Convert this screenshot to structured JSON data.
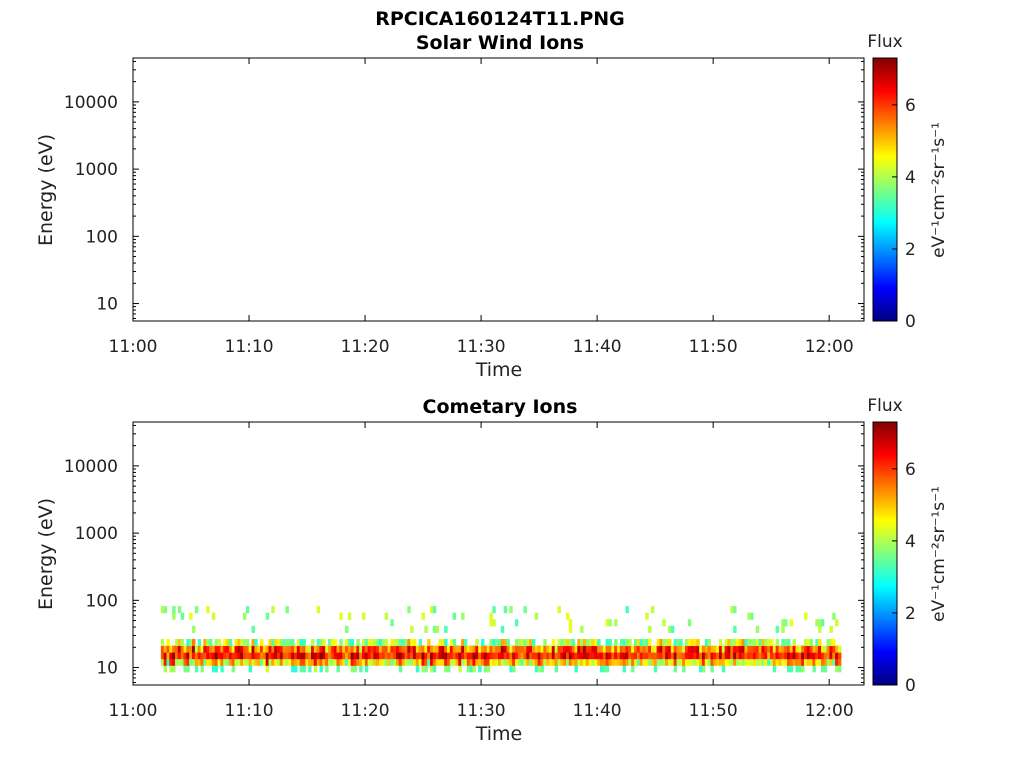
{
  "figure": {
    "filename": "RPCICA160124T11.PNG"
  },
  "colorbar": {
    "title": "Flux",
    "unit_label": "eV⁻¹cm⁻²sr⁻¹s⁻¹",
    "ticks": [
      "0",
      "2",
      "4",
      "6"
    ],
    "range": [
      0,
      7.3
    ],
    "colormap": "jet",
    "colors": [
      "#00007f",
      "#0000ff",
      "#007fff",
      "#00ffff",
      "#7fff7f",
      "#ffff00",
      "#ff7f00",
      "#ff0000",
      "#7f0000"
    ]
  },
  "chart_data": [
    {
      "type": "heatmap",
      "title": "Solar Wind Ions",
      "xlabel": "Time",
      "ylabel": "Energy (eV)",
      "xticks": [
        "11:00",
        "11:10",
        "11:20",
        "11:30",
        "11:40",
        "11:50",
        "12:00"
      ],
      "xlim_minutes": [
        0,
        63
      ],
      "yscale": "log",
      "yticks": [
        "10",
        "100",
        "1000",
        "10000"
      ],
      "ylim": [
        5.5,
        45000
      ],
      "data": "no counts shown",
      "band": null
    },
    {
      "type": "heatmap",
      "title": "Cometary Ions",
      "xlabel": "Time",
      "ylabel": "Energy (eV)",
      "xticks": [
        "11:00",
        "11:10",
        "11:20",
        "11:30",
        "11:40",
        "11:50",
        "12:00"
      ],
      "xlim_minutes": [
        0,
        63
      ],
      "yscale": "log",
      "yticks": [
        "10",
        "100",
        "1000",
        "10000"
      ],
      "ylim": [
        5.5,
        45000
      ],
      "band": {
        "t_start_min": 2.4,
        "t_end_min": 61,
        "energy_low_eV": 6,
        "energy_high_eV": 30,
        "peak_energy_eV": 16,
        "peak_flux": 6.8,
        "sparse_upper_energy_eV": 80
      }
    }
  ]
}
